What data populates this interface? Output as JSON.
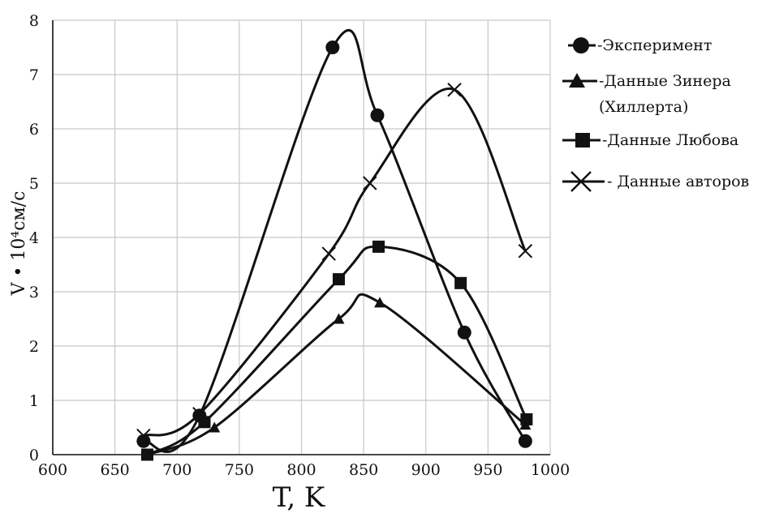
{
  "chart_data": {
    "type": "line",
    "xlabel": "T, K",
    "ylabel": "V • 10⁴см/с",
    "xlim": [
      600,
      1000
    ],
    "ylim": [
      0,
      8
    ],
    "x_ticks": [
      600,
      650,
      700,
      750,
      800,
      850,
      900,
      950,
      1000
    ],
    "y_ticks": [
      0,
      1,
      2,
      3,
      4,
      5,
      6,
      7,
      8
    ],
    "grid": true,
    "legend_position": "right",
    "series": [
      {
        "name": "-Эксперимент",
        "marker": "circle",
        "x": [
          673,
          718,
          825,
          861,
          931,
          980
        ],
        "y": [
          0.25,
          0.72,
          7.5,
          6.25,
          2.25,
          0.25
        ]
      },
      {
        "name": "-Данные Зинера (Хиллерта)",
        "marker": "triangle",
        "x": [
          676,
          730,
          830,
          863,
          980
        ],
        "y": [
          0.0,
          0.5,
          2.5,
          2.8,
          0.55
        ]
      },
      {
        "name": "-Данные Любова",
        "marker": "square",
        "x": [
          676,
          722,
          830,
          862,
          928,
          981
        ],
        "y": [
          0.0,
          0.6,
          3.23,
          3.83,
          3.16,
          0.65
        ]
      },
      {
        "name": "- Данные авторов",
        "marker": "x",
        "x": [
          673,
          718,
          822,
          855,
          923,
          980
        ],
        "y": [
          0.35,
          0.75,
          3.7,
          5.0,
          6.72,
          3.75
        ]
      }
    ]
  },
  "legend": {
    "items": [
      {
        "marker": "circle",
        "label": "-Эксперимент"
      },
      {
        "marker": "triangle",
        "label": "-Данные Зинера",
        "label2": "(Хиллерта)"
      },
      {
        "marker": "square",
        "label": "-Данные Любова"
      },
      {
        "marker": "x",
        "label": "- Данные авторов"
      }
    ]
  },
  "colors": {
    "line": "#111111",
    "grid": "#c8c8c8",
    "background": "#ffffff"
  }
}
